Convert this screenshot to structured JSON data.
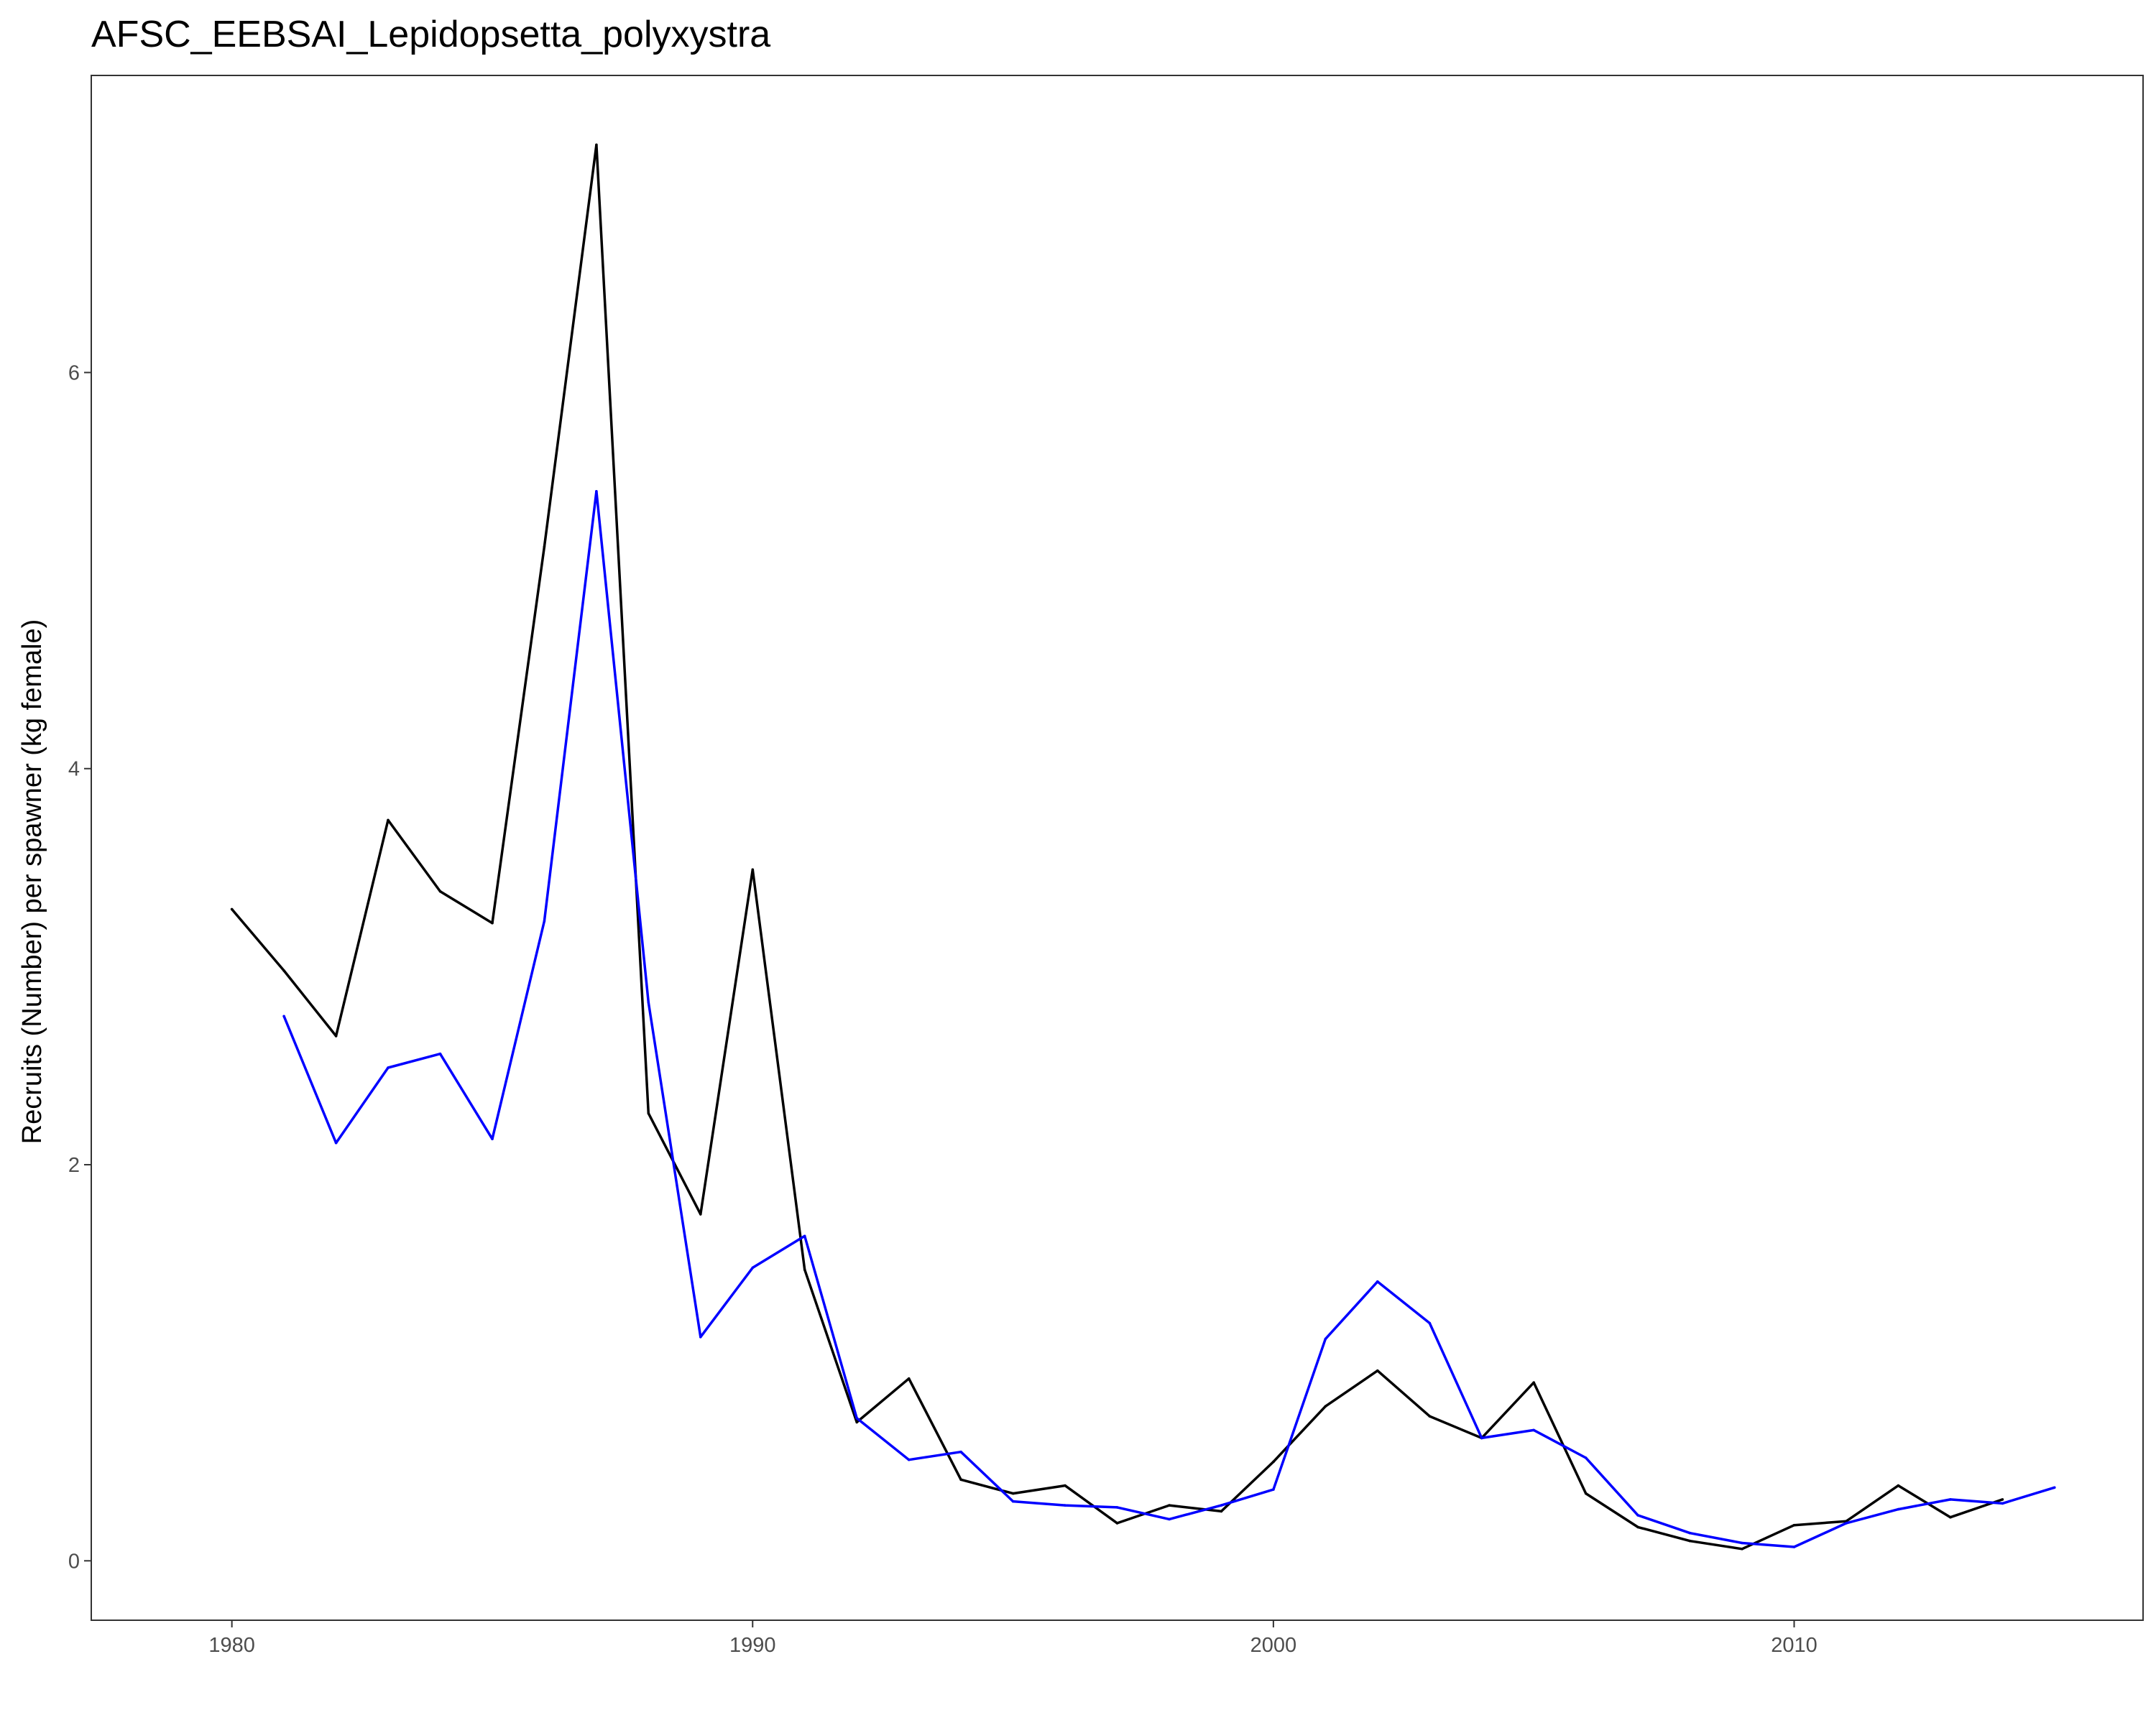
{
  "chart_data": {
    "type": "line",
    "title": "AFSC_EEBSAI_Lepidopsetta_polyxystra",
    "xlabel": "",
    "ylabel": "Recruits (Number) per spawner (kg female)",
    "xlim": [
      1977.3,
      2016.7
    ],
    "ylim": [
      -0.3,
      7.5
    ],
    "grid": false,
    "x_ticks": [
      1980,
      1990,
      2000,
      2010
    ],
    "y_ticks": [
      0,
      2,
      4,
      6
    ],
    "series": [
      {
        "name": "black",
        "color": "#000000",
        "x": [
          1980,
          1981,
          1982,
          1983,
          1984,
          1985,
          1986,
          1987,
          1988,
          1989,
          1990,
          1991,
          1992,
          1993,
          1994,
          1995,
          1996,
          1997,
          1998,
          1999,
          2000,
          2001,
          2002,
          2003,
          2004,
          2005,
          2006,
          2007,
          2008,
          2009,
          2010,
          2011,
          2012,
          2013,
          2014
        ],
        "values": [
          3.29,
          2.98,
          2.65,
          3.74,
          3.38,
          3.22,
          5.12,
          7.15,
          2.26,
          1.75,
          3.49,
          1.47,
          0.7,
          0.92,
          0.41,
          0.34,
          0.38,
          0.19,
          0.28,
          0.25,
          0.5,
          0.78,
          0.96,
          0.73,
          0.62,
          0.9,
          0.34,
          0.17,
          0.1,
          0.06,
          0.18,
          0.2,
          0.38,
          0.22,
          0.31
        ]
      },
      {
        "name": "blue",
        "color": "#0000ff",
        "x": [
          1981,
          1982,
          1983,
          1984,
          1985,
          1986,
          1987,
          1988,
          1989,
          1990,
          1991,
          1992,
          1993,
          1994,
          1995,
          1996,
          1997,
          1998,
          1999,
          2000,
          2001,
          2002,
          2003,
          2004,
          2005,
          2006,
          2007,
          2008,
          2009,
          2010,
          2011,
          2012,
          2013,
          2014,
          2015
        ],
        "values": [
          2.75,
          2.11,
          2.49,
          2.56,
          2.13,
          3.23,
          5.4,
          2.82,
          1.13,
          1.48,
          1.64,
          0.72,
          0.51,
          0.55,
          0.3,
          0.28,
          0.27,
          0.21,
          0.28,
          0.36,
          1.12,
          1.41,
          1.2,
          0.62,
          0.66,
          0.52,
          0.23,
          0.14,
          0.09,
          0.07,
          0.19,
          0.26,
          0.31,
          0.29,
          0.37
        ]
      }
    ]
  }
}
